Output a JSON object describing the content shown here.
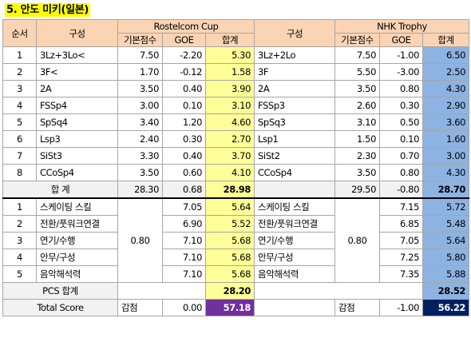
{
  "title": "5. 안도 미키(일본)",
  "headers": {
    "no": "순서",
    "elem": "구성",
    "comp1": "Rostelcom Cup",
    "comp2": "NHK Trophy",
    "base": "기본점수",
    "goe": "GOE",
    "total": "합계"
  },
  "elements": [
    {
      "no": "1",
      "e1": "3Lz+3Lo<",
      "b1": "7.50",
      "g1": "-2.20",
      "t1": "5.30",
      "e2": "3Lz+2Lo",
      "b2": "7.50",
      "g2": "-1.00",
      "t2": "6.50"
    },
    {
      "no": "2",
      "e1": "3F<",
      "b1": "1.70",
      "g1": "-0.12",
      "t1": "1.58",
      "e2": "3F",
      "b2": "5.50",
      "g2": "-3.00",
      "t2": "2.50"
    },
    {
      "no": "3",
      "e1": "2A",
      "b1": "3.50",
      "g1": "0.40",
      "t1": "3.90",
      "e2": "2A",
      "b2": "3.50",
      "g2": "0.80",
      "t2": "4.30"
    },
    {
      "no": "4",
      "e1": "FSSp4",
      "b1": "3.00",
      "g1": "0.10",
      "t1": "3.10",
      "e2": "FSSp3",
      "b2": "2.60",
      "g2": "0.30",
      "t2": "2.90"
    },
    {
      "no": "5",
      "e1": "SpSq4",
      "b1": "3.40",
      "g1": "1.20",
      "t1": "4.60",
      "e2": "SpSq3",
      "b2": "3.10",
      "g2": "0.50",
      "t2": "3.60"
    },
    {
      "no": "6",
      "e1": "Lsp3",
      "b1": "2.40",
      "g1": "0.30",
      "t1": "2.70",
      "e2": "Lsp1",
      "b2": "1.50",
      "g2": "0.10",
      "t2": "1.60"
    },
    {
      "no": "7",
      "e1": "SiSt3",
      "b1": "3.30",
      "g1": "0.40",
      "t1": "3.70",
      "e2": "SiSt2",
      "b2": "2.30",
      "g2": "0.70",
      "t2": "3.00"
    },
    {
      "no": "8",
      "e1": "CCoSp4",
      "b1": "3.50",
      "g1": "0.60",
      "t1": "4.10",
      "e2": "CCoSp4",
      "b2": "3.50",
      "g2": "0.80",
      "t2": "4.30"
    }
  ],
  "tes": {
    "label": "합 계",
    "b1": "28.30",
    "g1": "0.68",
    "t1": "28.98",
    "b2": "29.50",
    "g2": "-0.80",
    "t2": "28.70"
  },
  "pcs_factor1": "0.80",
  "pcs_factor2": "0.80",
  "components": [
    {
      "no": "1",
      "name": "스케이팅 스킬",
      "s1": "7.05",
      "t1": "5.64",
      "s2": "7.15",
      "t2": "5.72"
    },
    {
      "no": "2",
      "name": "전환/풋워크연결",
      "s1": "6.90",
      "t1": "5.52",
      "s2": "6.85",
      "t2": "5.48"
    },
    {
      "no": "3",
      "name": "연기/수행",
      "s1": "7.10",
      "t1": "5.68",
      "s2": "7.05",
      "t2": "5.64"
    },
    {
      "no": "4",
      "name": "안무/구성",
      "s1": "7.10",
      "t1": "5.68",
      "s2": "7.25",
      "t2": "5.80"
    },
    {
      "no": "5",
      "name": "음악해석력",
      "s1": "7.10",
      "t1": "5.68",
      "s2": "7.35",
      "t2": "5.88"
    }
  ],
  "pcs": {
    "label": "PCS 합계",
    "t1": "28.20",
    "t2": "28.52"
  },
  "total": {
    "label": "Total Score",
    "ded_label": "감점",
    "d1": "0.00",
    "t1": "57.18",
    "d2": "-1.00",
    "t2": "56.22"
  }
}
